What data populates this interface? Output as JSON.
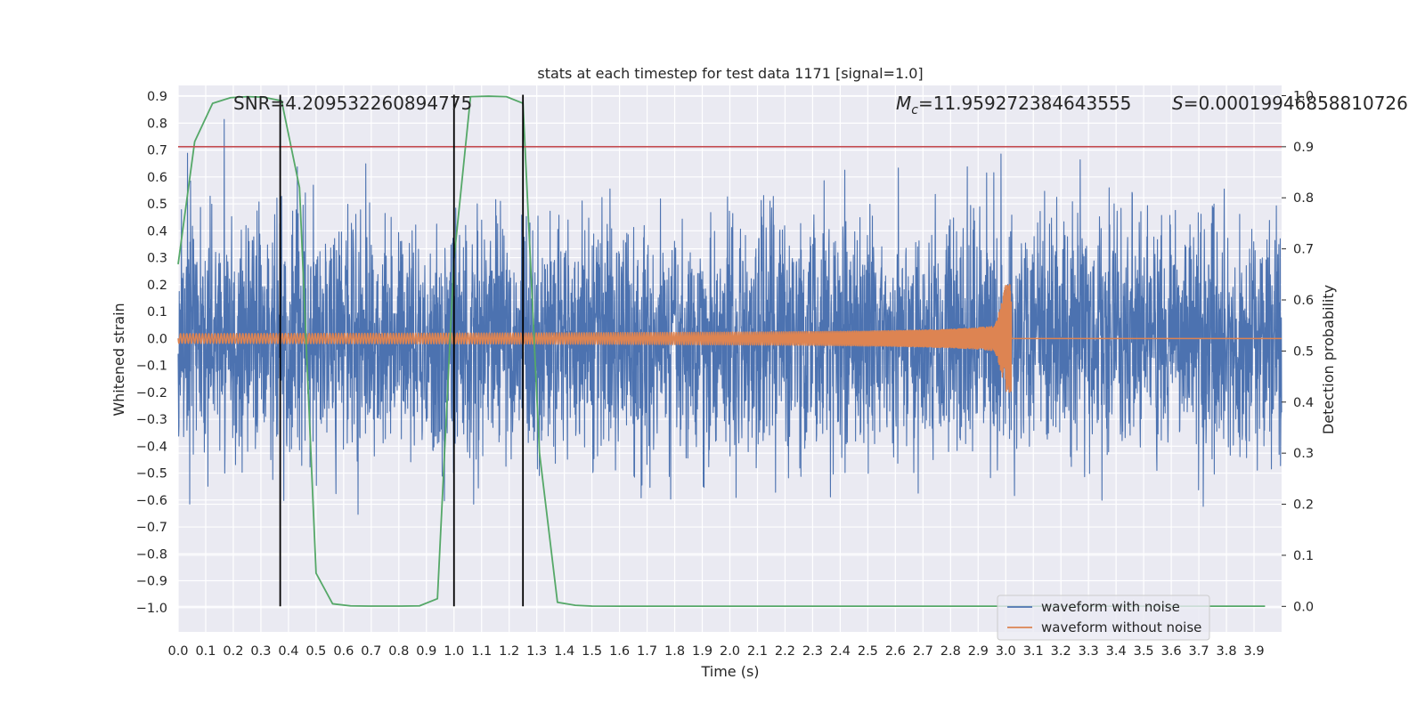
{
  "chart_data": {
    "type": "line",
    "title": "stats at each timestep for test data 1171 [signal=1.0]",
    "xlabel": "Time (s)",
    "ylabel": "Whitened strain",
    "ylabel_right": "Detection probability",
    "xlim": [
      0.0,
      4.0
    ],
    "ylim": [
      -1.09,
      0.94
    ],
    "ylim_right": [
      -0.05,
      1.02
    ],
    "x_ticks": [
      "0.0",
      "0.1",
      "0.2",
      "0.3",
      "0.4",
      "0.5",
      "0.6",
      "0.7",
      "0.8",
      "0.9",
      "1.0",
      "1.1",
      "1.2",
      "1.3",
      "1.4",
      "1.5",
      "1.6",
      "1.7",
      "1.8",
      "1.9",
      "2.0",
      "2.1",
      "2.2",
      "2.3",
      "2.4",
      "2.5",
      "2.6",
      "2.7",
      "2.8",
      "2.9",
      "3.0",
      "3.1",
      "3.2",
      "3.3",
      "3.4",
      "3.5",
      "3.6",
      "3.7",
      "3.8",
      "3.9"
    ],
    "y_ticks": [
      "0.9",
      "0.8",
      "0.7",
      "0.6",
      "0.5",
      "0.4",
      "0.3",
      "0.2",
      "0.1",
      "0.0",
      "−0.1",
      "−0.2",
      "−0.3",
      "−0.4",
      "−0.5",
      "−0.6",
      "−0.7",
      "−0.8",
      "−0.9",
      "−1.0"
    ],
    "y_ticks_right": [
      "1.0",
      "0.9",
      "0.8",
      "0.7",
      "0.6",
      "0.5",
      "0.4",
      "0.3",
      "0.2",
      "0.1",
      "0.0"
    ],
    "grid": true,
    "legend_position": "lower-right",
    "series": [
      {
        "name": "waveform with noise",
        "color": "#4c72b0",
        "axis": "left",
        "kind": "noise",
        "approx_std": 0.22,
        "approx_range": [
          -1.0,
          0.85
        ]
      },
      {
        "name": "waveform without noise",
        "color": "#dd8452",
        "axis": "left",
        "kind": "chirp",
        "t_merger": 3.02,
        "start_amplitude": 0.018,
        "peak_amplitude": 0.2
      },
      {
        "name": "",
        "color": "#55a868",
        "axis": "right",
        "kind": "line",
        "x": [
          0.0,
          0.06,
          0.125,
          0.19,
          0.25,
          0.31,
          0.375,
          0.44,
          0.5,
          0.56,
          0.625,
          0.69,
          0.75,
          0.81,
          0.875,
          0.94,
          1.0,
          1.06,
          1.125,
          1.19,
          1.25,
          1.31,
          1.375,
          1.44,
          1.5,
          1.6,
          1.8,
          2.0,
          2.5,
          3.0,
          3.5,
          3.94
        ],
        "y": [
          0.67,
          0.91,
          0.985,
          0.996,
          0.998,
          0.997,
          0.99,
          0.82,
          0.065,
          0.005,
          0.001,
          0.0005,
          0.0005,
          0.0005,
          0.001,
          0.015,
          0.68,
          0.998,
          0.999,
          0.998,
          0.985,
          0.3,
          0.008,
          0.002,
          0.0005,
          0.0003,
          0.0003,
          0.0003,
          0.0003,
          0.0003,
          0.0003,
          0.0003
        ]
      }
    ],
    "hline_right": {
      "y": 0.9,
      "color": "#c44e52"
    },
    "vlines": [
      0.37,
      1.0,
      1.25
    ],
    "vline_color": "#000000",
    "annotations": {
      "snr": "SNR=4.209532260894775",
      "mc": "=11.959272384643555",
      "mc_symbol": "M",
      "mc_subscript": "c",
      "s_symbol": "S",
      "s_value": "=0.00019946858810726"
    }
  }
}
